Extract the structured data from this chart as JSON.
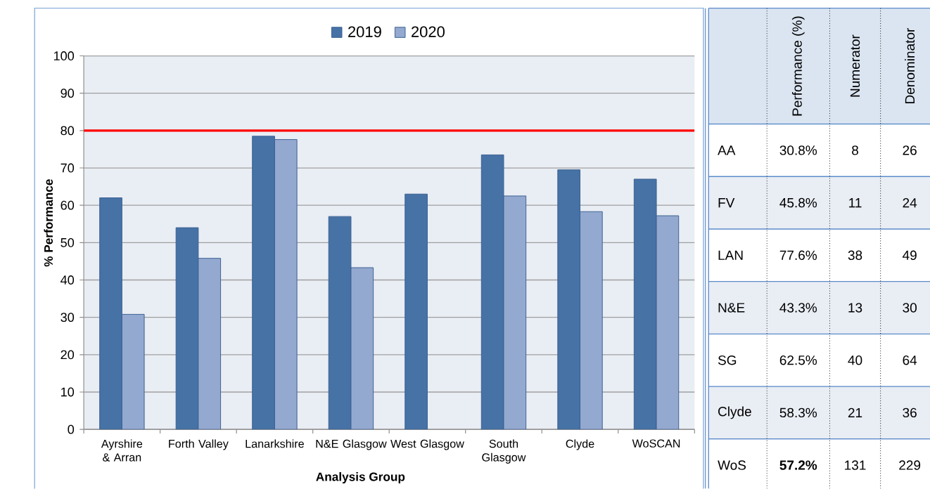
{
  "chart_data": [
    {
      "type": "bar",
      "categories": [
        "Ayrshire & Arran",
        "Forth Valley",
        "Lanarkshire",
        "N&E Glasgow",
        "West Glasgow",
        "South Glasgow",
        "Clyde",
        "WoSCAN"
      ],
      "series": [
        {
          "name": "2019",
          "color": "#4672a6",
          "values": [
            62,
            54,
            78.5,
            57,
            63,
            73.5,
            69.5,
            67
          ]
        },
        {
          "name": "2020",
          "color": "#94a9d0",
          "values": [
            30.8,
            45.8,
            77.6,
            43.3,
            null,
            62.5,
            58.3,
            57.2
          ]
        }
      ],
      "xlabel": "Analysis Group",
      "ylabel": "% Performance",
      "ylim": [
        0,
        100
      ],
      "yticks": [
        0,
        10,
        20,
        30,
        40,
        50,
        60,
        70,
        80,
        90,
        100
      ],
      "grid": "y",
      "legend": "top",
      "ref_lines": [
        {
          "axis": "y",
          "value": 80,
          "color": "#ff0000"
        }
      ]
    },
    {
      "type": "other",
      "categories": [
        null,
        "Performance (%)",
        "Numerator",
        "Denominator"
      ],
      "annotations": [
        "AA",
        "30.8%",
        "8",
        "26",
        "FV",
        "45.8%",
        "11",
        "24",
        "LAN",
        "77.6%",
        "38",
        "49",
        "N&E",
        "43.3%",
        "13",
        "30",
        "SG",
        "62.5%",
        "40",
        "64",
        "Clyde",
        "58.3%",
        "21",
        "36",
        "WoS",
        "**57.2%**",
        "131",
        "229"
      ]
    }
  ]
}
